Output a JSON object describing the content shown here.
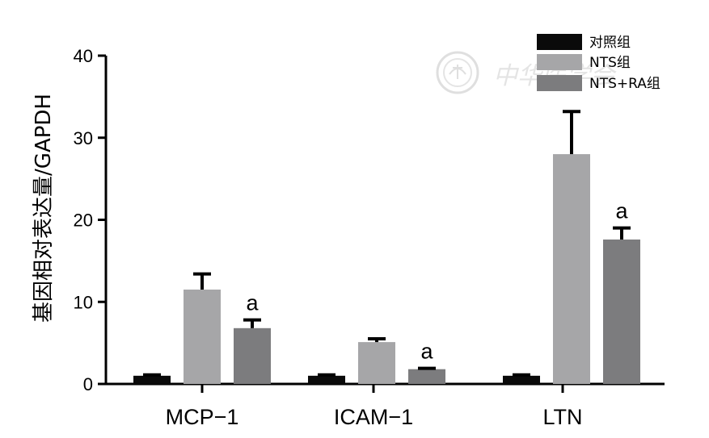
{
  "chart_data": {
    "type": "bar",
    "categories": [
      "MCP−1",
      "ICAM−1",
      "LTN"
    ],
    "series": [
      {
        "name": "对照组",
        "color": "#0a0a0a",
        "values": [
          1.0,
          1.0,
          1.0
        ],
        "errors": [
          0.1,
          0.1,
          0.1
        ],
        "annotations": [
          "",
          "",
          ""
        ]
      },
      {
        "name": "NTS组",
        "color": "#a6a6a8",
        "values": [
          11.5,
          5.1,
          28.0
        ],
        "errors": [
          1.9,
          0.4,
          5.2
        ],
        "annotations": [
          "",
          "",
          ""
        ]
      },
      {
        "name": "NTS+RA组",
        "color": "#7c7c7e",
        "values": [
          6.8,
          1.8,
          17.6
        ],
        "errors": [
          1.0,
          0.1,
          1.4
        ],
        "annotations": [
          "a",
          "a",
          "a"
        ]
      }
    ],
    "ylabel": "基因相对表达量/GAPDH",
    "xlabel": "",
    "ylim": [
      0,
      40
    ],
    "yticks": [
      0,
      10,
      20,
      30,
      40
    ],
    "grid": false,
    "legend_position": "top-right"
  },
  "watermark": {
    "text": "中华医学会"
  }
}
